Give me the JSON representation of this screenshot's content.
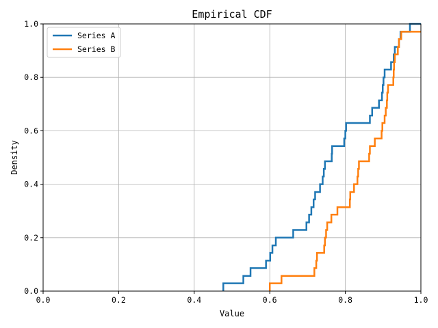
{
  "chart_data": {
    "type": "line",
    "title": "Empirical CDF",
    "xlabel": "Value",
    "ylabel": "Density",
    "xlim": [
      0.0,
      1.0
    ],
    "ylim": [
      0.0,
      1.0
    ],
    "xticks": [
      "0.0",
      "0.2",
      "0.4",
      "0.6",
      "0.8",
      "1.0"
    ],
    "yticks": [
      "0.0",
      "0.2",
      "0.4",
      "0.6",
      "0.8",
      "1.0"
    ],
    "grid": true,
    "legend_position": "top-left",
    "series": [
      {
        "name": "Series A",
        "color": "#1f77b4",
        "steps": [
          [
            0.477,
            0.0
          ],
          [
            0.477,
            0.029
          ],
          [
            0.53,
            0.029
          ],
          [
            0.53,
            0.057
          ],
          [
            0.549,
            0.057
          ],
          [
            0.549,
            0.086
          ],
          [
            0.59,
            0.086
          ],
          [
            0.59,
            0.114
          ],
          [
            0.601,
            0.114
          ],
          [
            0.601,
            0.143
          ],
          [
            0.607,
            0.143
          ],
          [
            0.607,
            0.171
          ],
          [
            0.616,
            0.171
          ],
          [
            0.616,
            0.2
          ],
          [
            0.662,
            0.2
          ],
          [
            0.662,
            0.229
          ],
          [
            0.697,
            0.229
          ],
          [
            0.697,
            0.257
          ],
          [
            0.704,
            0.257
          ],
          [
            0.704,
            0.286
          ],
          [
            0.71,
            0.286
          ],
          [
            0.71,
            0.314
          ],
          [
            0.716,
            0.314
          ],
          [
            0.716,
            0.343
          ],
          [
            0.72,
            0.343
          ],
          [
            0.72,
            0.371
          ],
          [
            0.733,
            0.371
          ],
          [
            0.733,
            0.4
          ],
          [
            0.74,
            0.4
          ],
          [
            0.74,
            0.429
          ],
          [
            0.743,
            0.429
          ],
          [
            0.743,
            0.457
          ],
          [
            0.746,
            0.457
          ],
          [
            0.746,
            0.486
          ],
          [
            0.764,
            0.486
          ],
          [
            0.764,
            0.514
          ],
          [
            0.765,
            0.514
          ],
          [
            0.765,
            0.543
          ],
          [
            0.797,
            0.543
          ],
          [
            0.797,
            0.571
          ],
          [
            0.8,
            0.571
          ],
          [
            0.8,
            0.6
          ],
          [
            0.802,
            0.6
          ],
          [
            0.802,
            0.629
          ],
          [
            0.865,
            0.629
          ],
          [
            0.865,
            0.657
          ],
          [
            0.871,
            0.657
          ],
          [
            0.871,
            0.686
          ],
          [
            0.889,
            0.686
          ],
          [
            0.889,
            0.714
          ],
          [
            0.897,
            0.714
          ],
          [
            0.897,
            0.743
          ],
          [
            0.899,
            0.743
          ],
          [
            0.899,
            0.771
          ],
          [
            0.901,
            0.771
          ],
          [
            0.901,
            0.8
          ],
          [
            0.904,
            0.8
          ],
          [
            0.904,
            0.829
          ],
          [
            0.921,
            0.829
          ],
          [
            0.921,
            0.857
          ],
          [
            0.928,
            0.857
          ],
          [
            0.928,
            0.886
          ],
          [
            0.931,
            0.886
          ],
          [
            0.931,
            0.914
          ],
          [
            0.942,
            0.914
          ],
          [
            0.942,
            0.943
          ],
          [
            0.946,
            0.943
          ],
          [
            0.946,
            0.971
          ],
          [
            0.971,
            0.971
          ],
          [
            0.971,
            1.0
          ],
          [
            1.0,
            1.0
          ]
        ]
      },
      {
        "name": "Series B",
        "color": "#ff7f0e",
        "steps": [
          [
            0.6,
            0.0
          ],
          [
            0.6,
            0.029
          ],
          [
            0.631,
            0.029
          ],
          [
            0.631,
            0.057
          ],
          [
            0.718,
            0.057
          ],
          [
            0.718,
            0.086
          ],
          [
            0.723,
            0.086
          ],
          [
            0.723,
            0.114
          ],
          [
            0.725,
            0.114
          ],
          [
            0.725,
            0.143
          ],
          [
            0.744,
            0.143
          ],
          [
            0.744,
            0.171
          ],
          [
            0.746,
            0.171
          ],
          [
            0.746,
            0.2
          ],
          [
            0.749,
            0.2
          ],
          [
            0.749,
            0.229
          ],
          [
            0.752,
            0.229
          ],
          [
            0.752,
            0.257
          ],
          [
            0.763,
            0.257
          ],
          [
            0.763,
            0.286
          ],
          [
            0.779,
            0.286
          ],
          [
            0.779,
            0.314
          ],
          [
            0.812,
            0.314
          ],
          [
            0.812,
            0.343
          ],
          [
            0.813,
            0.343
          ],
          [
            0.813,
            0.371
          ],
          [
            0.823,
            0.371
          ],
          [
            0.823,
            0.4
          ],
          [
            0.832,
            0.4
          ],
          [
            0.832,
            0.429
          ],
          [
            0.834,
            0.429
          ],
          [
            0.834,
            0.457
          ],
          [
            0.836,
            0.457
          ],
          [
            0.836,
            0.486
          ],
          [
            0.863,
            0.486
          ],
          [
            0.863,
            0.514
          ],
          [
            0.865,
            0.514
          ],
          [
            0.865,
            0.543
          ],
          [
            0.878,
            0.543
          ],
          [
            0.878,
            0.571
          ],
          [
            0.896,
            0.571
          ],
          [
            0.896,
            0.6
          ],
          [
            0.898,
            0.6
          ],
          [
            0.898,
            0.629
          ],
          [
            0.904,
            0.629
          ],
          [
            0.904,
            0.657
          ],
          [
            0.907,
            0.657
          ],
          [
            0.907,
            0.686
          ],
          [
            0.91,
            0.686
          ],
          [
            0.91,
            0.714
          ],
          [
            0.911,
            0.714
          ],
          [
            0.911,
            0.743
          ],
          [
            0.913,
            0.743
          ],
          [
            0.913,
            0.771
          ],
          [
            0.927,
            0.771
          ],
          [
            0.927,
            0.8
          ],
          [
            0.928,
            0.8
          ],
          [
            0.928,
            0.829
          ],
          [
            0.929,
            0.829
          ],
          [
            0.929,
            0.857
          ],
          [
            0.931,
            0.857
          ],
          [
            0.931,
            0.886
          ],
          [
            0.939,
            0.886
          ],
          [
            0.939,
            0.914
          ],
          [
            0.942,
            0.914
          ],
          [
            0.942,
            0.943
          ],
          [
            0.948,
            0.943
          ],
          [
            0.948,
            0.971
          ],
          [
            1.0,
            0.971
          ]
        ]
      }
    ]
  }
}
